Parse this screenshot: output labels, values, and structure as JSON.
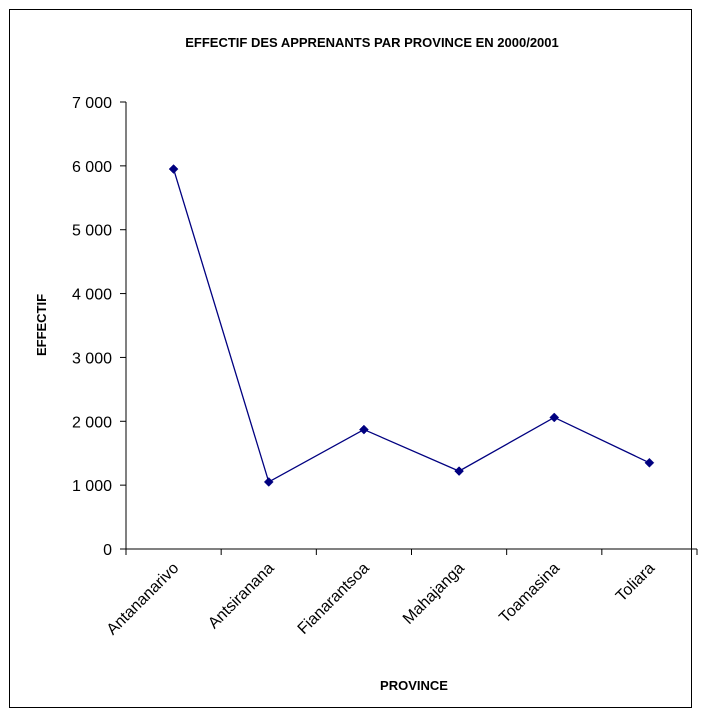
{
  "chart_data": {
    "type": "line",
    "title": "EFFECTIF DES APPRENANTS PAR PROVINCE EN 2000/2001",
    "xlabel": "PROVINCE",
    "ylabel": "EFFECTIF",
    "categories": [
      "Antananarivo",
      "Antsiranana",
      "Fianarantsoa",
      "Mahajanga",
      "Toamasina",
      "Toliara"
    ],
    "series": [
      {
        "values": [
          5950,
          1050,
          1870,
          1220,
          2060,
          1350
        ]
      }
    ],
    "ylim": [
      0,
      7000
    ],
    "yticks": [
      0,
      1000,
      2000,
      3000,
      4000,
      5000,
      6000,
      7000
    ],
    "ytick_labels": [
      "0",
      "1 000",
      "2 000",
      "3 000",
      "4 000",
      "5 000",
      "6 000",
      "7 000"
    ],
    "grid": false,
    "legend": "none",
    "colors": {
      "line": "#000080",
      "marker": "#000080",
      "axis": "#000000"
    }
  }
}
